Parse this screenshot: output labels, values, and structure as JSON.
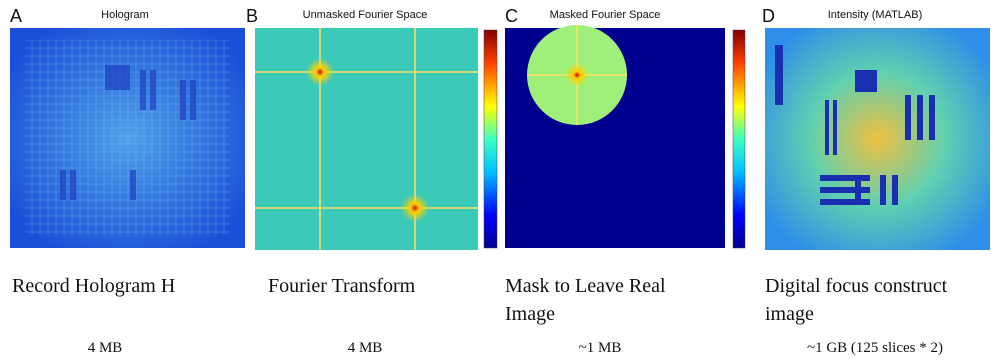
{
  "panels": [
    {
      "letter": "A",
      "title": "Hologram",
      "caption": "Record Hologram H",
      "size": "4 MB"
    },
    {
      "letter": "B",
      "title": "Unmasked Fourier Space",
      "caption": "Fourier Transform",
      "size": "4 MB"
    },
    {
      "letter": "C",
      "title": "Masked Fourier Space",
      "caption": "Mask to Leave Real Image",
      "size": "~1 MB"
    },
    {
      "letter": "D",
      "title": "Intensity (MATLAB)",
      "caption": "Digital focus construct image",
      "size": "~1 GB (125 slices * 2)"
    }
  ]
}
